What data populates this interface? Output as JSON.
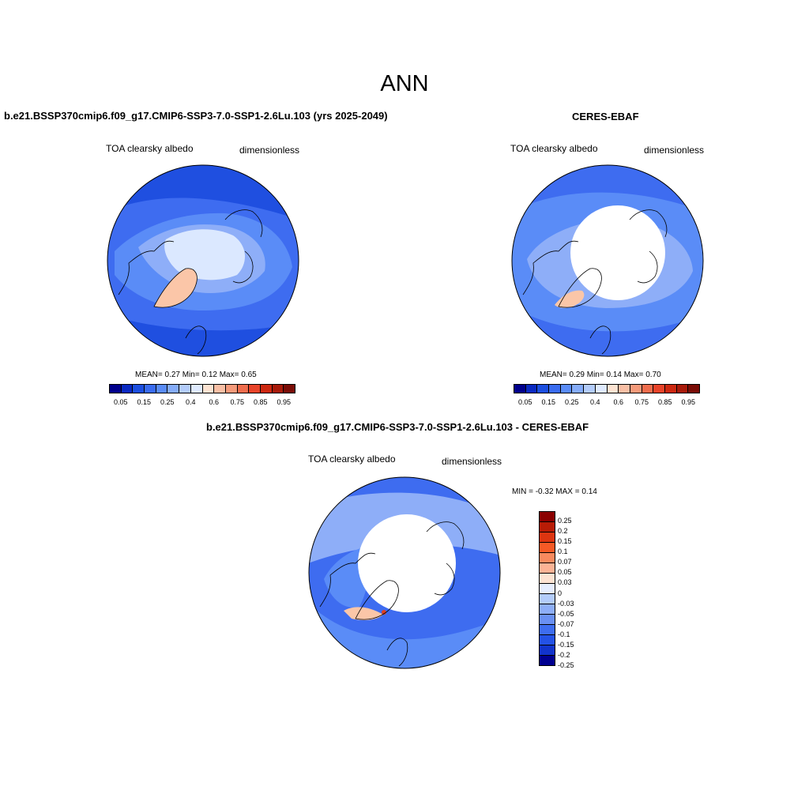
{
  "main_title": "ANN",
  "panels": [
    {
      "title": "b.e21.BSSP370cmip6.f09_g17.CMIP6-SSP3-7.0-SSP1-2.6Lu.103 (yrs 2025-2049)",
      "var_label": "TOA clearsky albedo",
      "units": "dimensionless",
      "stats": "MEAN=   0.27  Min=    0.12  Max=    0.65"
    },
    {
      "title": "CERES-EBAF",
      "var_label": "TOA clearsky albedo",
      "units": "dimensionless",
      "stats": "MEAN=   0.29  Min=    0.14  Max=    0.70"
    },
    {
      "title": "b.e21.BSSP370cmip6.f09_g17.CMIP6-SSP3-7.0-SSP1-2.6Lu.103 - CERES-EBAF",
      "var_label": "TOA clearsky albedo",
      "units": "dimensionless",
      "stats": "MIN =  -0.32 MAX =   0.14"
    }
  ],
  "abs_colorbar": {
    "colors": [
      "#00008c",
      "#0a2ac2",
      "#1c4fe0",
      "#3a6cf0",
      "#5a8cf7",
      "#85acf9",
      "#b3ccfb",
      "#dfeaff",
      "#fde3d2",
      "#f9bfa5",
      "#f59a7a",
      "#ef6d4d",
      "#e8442a",
      "#cc2810",
      "#a81a0a",
      "#7a0c06"
    ],
    "labels": [
      "0.05",
      "0.15",
      "0.25",
      "0.4",
      "0.6",
      "0.75",
      "0.85",
      "0.95"
    ]
  },
  "diff_colorbar": {
    "colors": [
      "#8b0000",
      "#b81c06",
      "#dd3510",
      "#f65a26",
      "#f98a5e",
      "#fcb395",
      "#fde3d2",
      "#e6eeff",
      "#b3ccfb",
      "#8eaef8",
      "#6a90f3",
      "#3e6df0",
      "#2452e6",
      "#1234cc",
      "#000090"
    ],
    "labels": [
      "0.25",
      "0.2",
      "0.15",
      "0.1",
      "0.07",
      "0.05",
      "0.03",
      "0",
      "-0.03",
      "-0.05",
      "-0.07",
      "-0.1",
      "-0.15",
      "-0.2",
      "-0.25"
    ]
  },
  "map_colors": {
    "deep": "#1f4fe0",
    "mid": "#3e6cf0",
    "light": "#8eaef8",
    "pale": "#dbe8ff",
    "orange": "#fbc6a8",
    "white": "#ffffff",
    "red": "#e04020"
  }
}
